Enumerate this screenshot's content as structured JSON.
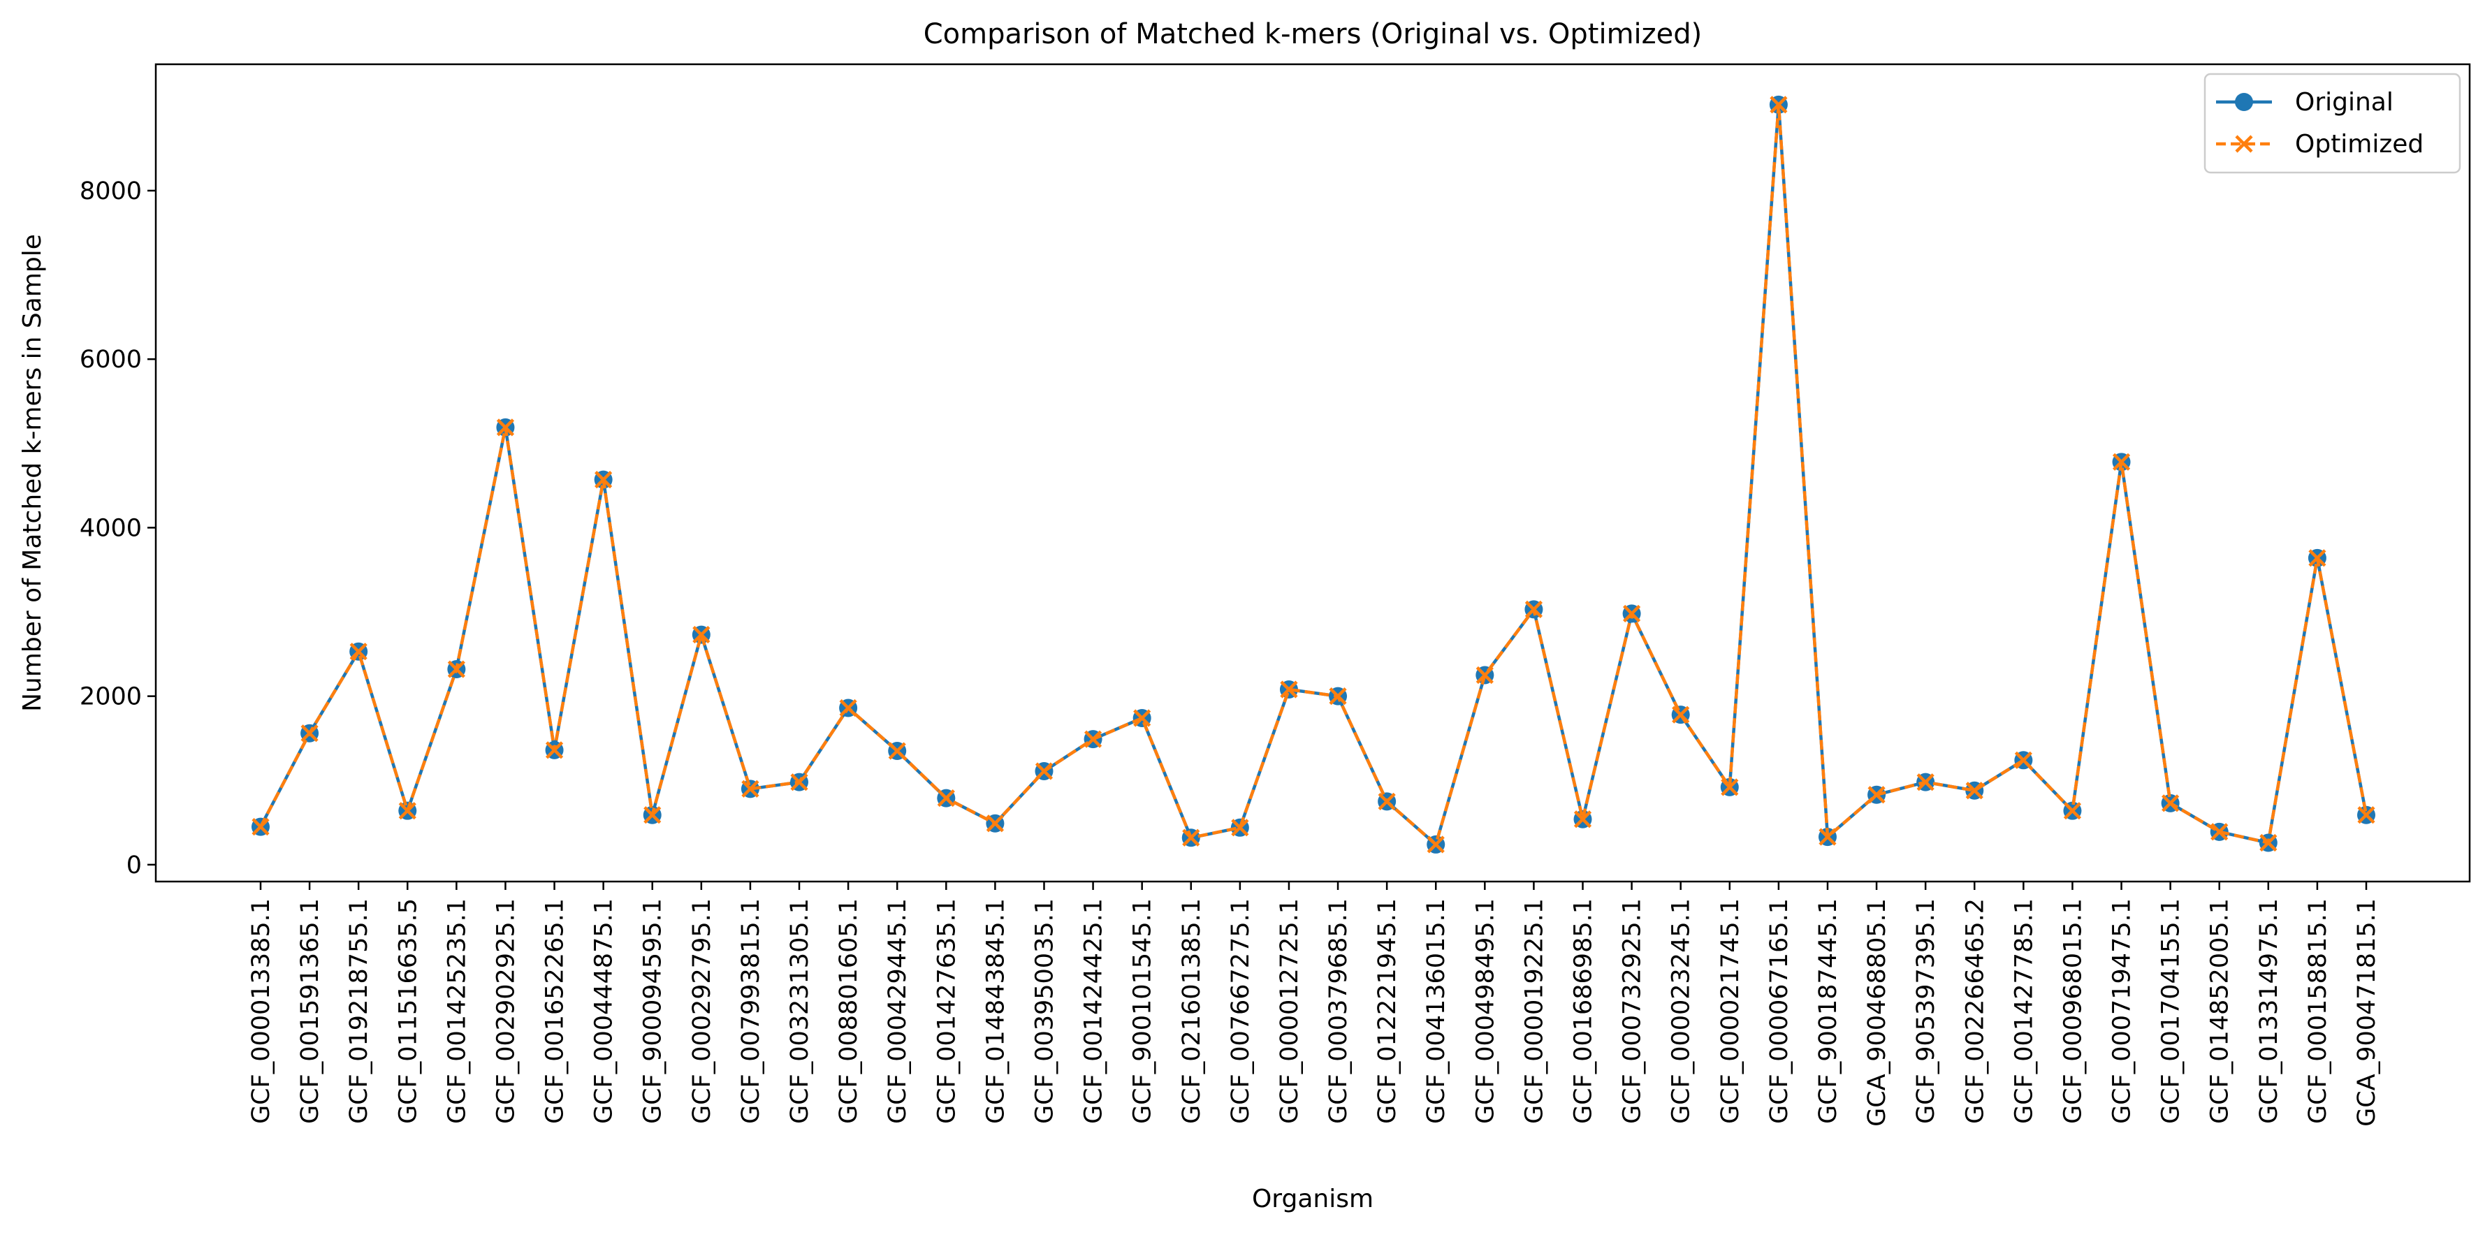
{
  "chart_data": {
    "type": "line",
    "title": "Comparison of Matched k-mers (Original vs. Optimized)",
    "xlabel": "Organism",
    "ylabel": "Number of Matched k-mers in Sample",
    "ylim": [
      -200,
      9500
    ],
    "yticks": [
      0,
      2000,
      4000,
      6000,
      8000
    ],
    "grid": false,
    "legend_position": "top-right",
    "categories": [
      "GCF_000013385.1",
      "GCF_001591365.1",
      "GCF_019218755.1",
      "GCF_011516635.5",
      "GCF_001425235.1",
      "GCF_002902925.1",
      "GCF_001652265.1",
      "GCF_000444875.1",
      "GCF_900094595.1",
      "GCF_000292795.1",
      "GCF_007993815.1",
      "GCF_003231305.1",
      "GCF_008801605.1",
      "GCF_000429445.1",
      "GCF_001427635.1",
      "GCF_014843845.1",
      "GCF_003950035.1",
      "GCF_001424425.1",
      "GCF_900101545.1",
      "GCF_021601385.1",
      "GCF_007667275.1",
      "GCF_000012725.1",
      "GCF_000379685.1",
      "GCF_012221945.1",
      "GCF_004136015.1",
      "GCF_000498495.1",
      "GCF_000019225.1",
      "GCF_001686985.1",
      "GCF_000732925.1",
      "GCF_000023245.1",
      "GCF_000021745.1",
      "GCF_000067165.1",
      "GCF_900187445.1",
      "GCA_900468805.1",
      "GCF_905397395.1",
      "GCF_002266465.2",
      "GCF_001427785.1",
      "GCF_000968015.1",
      "GCF_000719475.1",
      "GCF_001704155.1",
      "GCF_014852005.1",
      "GCF_013314975.1",
      "GCF_000158815.1",
      "GCA_900471815.1"
    ],
    "series": [
      {
        "name": "Original",
        "color": "#1f77b4",
        "marker": "circle",
        "linestyle": "solid",
        "values": [
          450,
          1560,
          2530,
          640,
          2320,
          5190,
          1360,
          4570,
          590,
          2730,
          900,
          980,
          1860,
          1350,
          790,
          490,
          1110,
          1490,
          1740,
          320,
          440,
          2080,
          2000,
          750,
          240,
          2250,
          3030,
          540,
          2980,
          1780,
          920,
          9020,
          330,
          830,
          980,
          880,
          1240,
          640,
          4780,
          730,
          390,
          260,
          3640,
          590
        ]
      },
      {
        "name": "Optimized",
        "color": "#ff7f0e",
        "marker": "x",
        "linestyle": "dashed",
        "values": [
          450,
          1560,
          2530,
          640,
          2320,
          5190,
          1360,
          4570,
          590,
          2730,
          900,
          980,
          1860,
          1350,
          790,
          490,
          1110,
          1490,
          1740,
          320,
          440,
          2080,
          2000,
          750,
          240,
          2250,
          3030,
          540,
          2980,
          1780,
          920,
          9020,
          330,
          830,
          980,
          880,
          1240,
          640,
          4780,
          730,
          390,
          260,
          3640,
          590
        ]
      }
    ]
  }
}
